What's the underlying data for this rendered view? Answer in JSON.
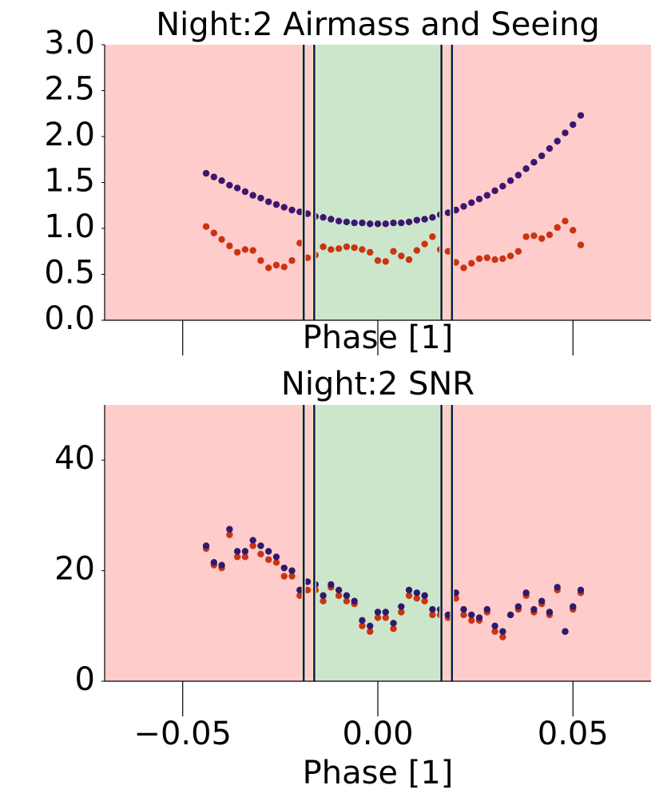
{
  "chart_data": [
    {
      "type": "scatter",
      "title": "Night:2 Airmass and Seeing",
      "x_label": "Phase [1]",
      "x": [
        -0.044,
        -0.042,
        -0.04,
        -0.038,
        -0.036,
        -0.034,
        -0.032,
        -0.03,
        -0.028,
        -0.026,
        -0.024,
        -0.022,
        -0.02,
        -0.018,
        -0.016,
        -0.014,
        -0.012,
        -0.01,
        -0.008,
        -0.006,
        -0.004,
        -0.002,
        0,
        0.002,
        0.004,
        0.006,
        0.008,
        0.01,
        0.012,
        0.014,
        0.016,
        0.018,
        0.02,
        0.022,
        0.024,
        0.026,
        0.028,
        0.03,
        0.032,
        0.034,
        0.036,
        0.038,
        0.04,
        0.042,
        0.044,
        0.046,
        0.048,
        0.05,
        0.052
      ],
      "series": [
        {
          "color": "#3d1670",
          "values": [
            1.6,
            1.56,
            1.52,
            1.47,
            1.44,
            1.4,
            1.36,
            1.33,
            1.29,
            1.26,
            1.23,
            1.2,
            1.18,
            1.16,
            1.13,
            1.12,
            1.1,
            1.08,
            1.07,
            1.06,
            1.06,
            1.05,
            1.05,
            1.05,
            1.06,
            1.06,
            1.07,
            1.09,
            1.1,
            1.12,
            1.15,
            1.17,
            1.2,
            1.24,
            1.28,
            1.32,
            1.36,
            1.41,
            1.46,
            1.52,
            1.58,
            1.65,
            1.72,
            1.79,
            1.87,
            1.95,
            2.04,
            2.13,
            2.23
          ]
        },
        {
          "color": "#cc3311",
          "values": [
            1.02,
            0.95,
            0.88,
            0.81,
            0.74,
            0.77,
            0.76,
            0.65,
            0.57,
            0.6,
            0.58,
            0.65,
            0.84,
            0.68,
            0.71,
            0.8,
            0.77,
            0.78,
            0.8,
            0.79,
            0.77,
            0.74,
            0.65,
            0.64,
            0.75,
            0.7,
            0.66,
            0.76,
            0.83,
            0.91,
            0.77,
            0.75,
            0.63,
            0.57,
            0.62,
            0.67,
            0.68,
            0.66,
            0.67,
            0.7,
            0.75,
            0.91,
            0.92,
            0.89,
            0.93,
            1.01,
            1.08,
            0.98,
            0.82
          ]
        }
      ],
      "xlim": [
        -0.07,
        0.07
      ],
      "ylim": [
        0,
        3
      ],
      "yticks": [
        {
          "value": 0,
          "label": "0.0"
        },
        {
          "value": 0.5,
          "label": "0.5"
        },
        {
          "value": 1,
          "label": "1.0"
        },
        {
          "value": 1.5,
          "label": "1.5"
        },
        {
          "value": 2,
          "label": "2.0"
        },
        {
          "value": 2.5,
          "label": "2.5"
        },
        {
          "value": 3,
          "label": "3.0"
        }
      ],
      "background_color": "#ffcccc",
      "band": [
        -0.0163,
        0.0163
      ],
      "band_color": "#cce6cc",
      "vlines": [
        -0.019,
        -0.0163,
        0.0163,
        0.019
      ],
      "vline_color": "#0a1a5c"
    },
    {
      "type": "scatter",
      "title": "Night:2 SNR",
      "x_label": "Phase [1]",
      "x": [
        -0.044,
        -0.042,
        -0.04,
        -0.038,
        -0.036,
        -0.034,
        -0.032,
        -0.03,
        -0.028,
        -0.026,
        -0.024,
        -0.022,
        -0.02,
        -0.018,
        -0.016,
        -0.014,
        -0.012,
        -0.01,
        -0.008,
        -0.006,
        -0.004,
        -0.002,
        0,
        0.002,
        0.004,
        0.006,
        0.008,
        0.01,
        0.012,
        0.014,
        0.016,
        0.018,
        0.02,
        0.022,
        0.024,
        0.026,
        0.028,
        0.03,
        0.032,
        0.034,
        0.036,
        0.038,
        0.04,
        0.042,
        0.044,
        0.046,
        0.048,
        0.05,
        0.052
      ],
      "series": [
        {
          "color": "#cc3311",
          "values": [
            24,
            21,
            20.5,
            26.5,
            22.5,
            22.5,
            24.5,
            23,
            22,
            21.5,
            19,
            19,
            15.5,
            16.5,
            16.5,
            14.5,
            17,
            15.5,
            14.5,
            14,
            10,
            9,
            11.5,
            11.5,
            9.5,
            12.5,
            15.5,
            15,
            14.5,
            12,
            12,
            11.5,
            15,
            12,
            11,
            11,
            12.5,
            9,
            8,
            12,
            13,
            15.5,
            12.5,
            14,
            12,
            16.5,
            9,
            13,
            16
          ]
        },
        {
          "color": "#2d1a6e",
          "values": [
            24.5,
            21.5,
            21,
            27.5,
            23.5,
            23.5,
            25.5,
            24.5,
            23.5,
            22.5,
            20.5,
            20,
            16.5,
            18,
            17.5,
            15.5,
            17.5,
            16.5,
            15.5,
            14.5,
            11,
            10,
            12.5,
            12.5,
            10.5,
            13.5,
            16.5,
            16,
            15.5,
            13,
            13,
            12,
            16,
            13,
            12,
            11.5,
            13,
            10,
            9,
            12,
            13.5,
            16,
            13,
            14.5,
            12.5,
            17,
            9,
            13.5,
            16.5
          ]
        }
      ],
      "xlim": [
        -0.07,
        0.07
      ],
      "ylim": [
        0,
        50
      ],
      "xticks": [
        {
          "value": -0.05,
          "label": "−0.05"
        },
        {
          "value": 0,
          "label": "0.00"
        },
        {
          "value": 0.05,
          "label": "0.05"
        }
      ],
      "yticks": [
        0,
        20,
        40
      ],
      "background_color": "#ffcccc",
      "band": [
        -0.0163,
        0.0163
      ],
      "band_color": "#cce6cc",
      "vlines": [
        -0.019,
        -0.0163,
        0.0163,
        0.019
      ],
      "vline_color": "#0a1a5c"
    }
  ]
}
